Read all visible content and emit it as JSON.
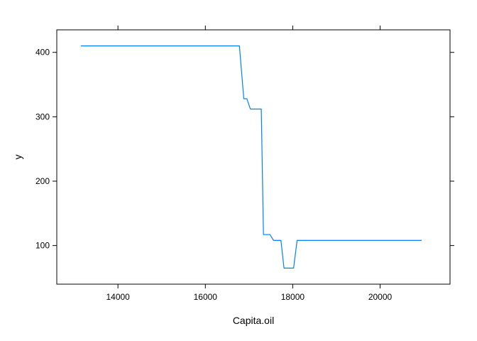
{
  "chart_data": {
    "type": "line",
    "title": "",
    "xlabel": "Capita.oil",
    "ylabel": "y",
    "xlim": [
      12600,
      21600
    ],
    "ylim": [
      40,
      435
    ],
    "x_ticks": [
      14000,
      16000,
      18000,
      20000
    ],
    "y_ticks": [
      100,
      200,
      300,
      400
    ],
    "grid": false,
    "legend": "none",
    "series": [
      {
        "color": "#0080ff",
        "x": [
          13150,
          16780,
          16880,
          16950,
          17030,
          17280,
          17330,
          17480,
          17560,
          17730,
          17800,
          18020,
          18100,
          20950
        ],
        "y": [
          410,
          410,
          328,
          328,
          312,
          312,
          117,
          117,
          108,
          108,
          65,
          65,
          108,
          108
        ]
      }
    ]
  }
}
